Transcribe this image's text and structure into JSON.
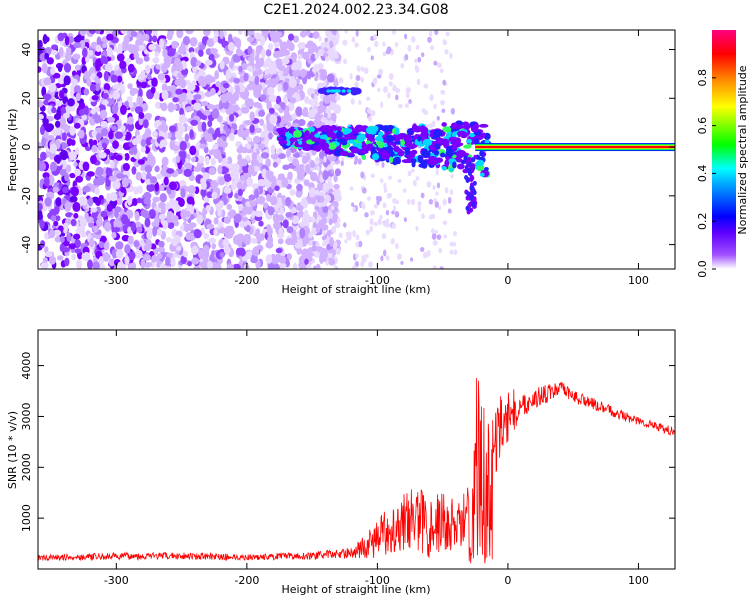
{
  "title": "C2E1.2024.002.23.34.G08",
  "chart_data": [
    {
      "type": "heatmap",
      "xlabel": "Height of straight line (km)",
      "ylabel": "Frequency (Hz)",
      "xlim": [
        -360,
        128
      ],
      "ylim": [
        -50,
        48
      ],
      "x_ticks": [
        -300,
        -200,
        -100,
        0,
        100
      ],
      "y_ticks": [
        -40,
        -20,
        0,
        20,
        40
      ],
      "colorbar": {
        "label": "Normalized spectral amplitude",
        "range": [
          0,
          1
        ],
        "ticks": [
          0.0,
          0.2,
          0.4,
          0.6,
          0.8
        ],
        "colors": [
          "#ffffff",
          "#7a00ff",
          "#0000ff",
          "#00e0ff",
          "#00ff30",
          "#ffff00",
          "#ff8000",
          "#ff0000",
          "#ff0080"
        ]
      },
      "regions": [
        {
          "desc": "noise",
          "x": [
            -360,
            -130
          ],
          "y": [
            -50,
            48
          ],
          "amplitude": 0.1
        },
        {
          "desc": "tone",
          "x": [
            -145,
            -115
          ],
          "y": [
            22,
            24
          ],
          "amplitude": 0.35
        },
        {
          "desc": "carrier",
          "x": [
            -175,
            -10
          ],
          "y": [
            -10,
            12
          ],
          "amplitude": 0.3
        },
        {
          "desc": "carrier-line",
          "x": [
            -25,
            128
          ],
          "y": [
            0,
            0
          ],
          "amplitude": 0.95
        }
      ],
      "colors": {
        "line_outer": "#00ff40",
        "line_mid": "#ffd000",
        "line_core": "#ff0000"
      }
    },
    {
      "type": "line",
      "xlabel": "Height of straight line (km)",
      "ylabel": "SNR (10 * v/v)",
      "xlim": [
        -360,
        128
      ],
      "ylim": [
        0,
        4700
      ],
      "x_ticks": [
        -300,
        -200,
        -100,
        0,
        100
      ],
      "y_ticks": [
        1000,
        2000,
        3000,
        4000
      ],
      "series": [
        {
          "color": "#ff0000",
          "x": [
            -360,
            -300,
            -250,
            -200,
            -150,
            -120,
            -105,
            -90,
            -75,
            -60,
            -45,
            -35,
            -28,
            -22,
            -18,
            -14,
            -8,
            0,
            10,
            20,
            30,
            40,
            50,
            60,
            70,
            80,
            90,
            100,
            110,
            120,
            128
          ],
          "y": [
            220,
            250,
            260,
            230,
            260,
            320,
            500,
            800,
            1000,
            900,
            900,
            800,
            1800,
            2400,
            2000,
            1600,
            2600,
            2900,
            3200,
            3350,
            3450,
            3550,
            3400,
            3300,
            3200,
            3100,
            3000,
            2900,
            2850,
            2750,
            2700
          ],
          "noise": [
            60,
            70,
            70,
            60,
            70,
            100,
            300,
            500,
            600,
            700,
            600,
            500,
            1200,
            1400,
            1400,
            1200,
            700,
            400,
            250,
            200,
            180,
            150,
            130,
            120,
            110,
            100,
            100,
            90,
            90,
            90,
            90
          ]
        }
      ]
    }
  ]
}
